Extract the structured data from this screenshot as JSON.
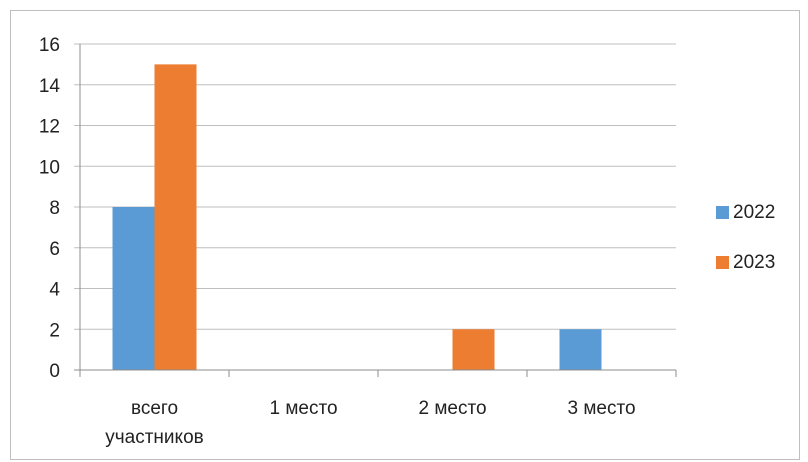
{
  "chart_data": {
    "type": "bar",
    "categories": [
      "всего участников",
      "1 место",
      "2 место",
      "3 место"
    ],
    "category_lines": [
      [
        "всего",
        "участников"
      ],
      [
        "1 место"
      ],
      [
        "2 место"
      ],
      [
        "3 место"
      ]
    ],
    "series": [
      {
        "name": "2022",
        "color": "#5B9BD5",
        "values": [
          8,
          0,
          0,
          2
        ]
      },
      {
        "name": "2023",
        "color": "#ED7D31",
        "values": [
          15,
          0,
          2,
          0
        ]
      }
    ],
    "ylim": [
      0,
      16
    ],
    "yticks": [
      "0",
      "2",
      "4",
      "6",
      "8",
      "10",
      "12",
      "14",
      "16"
    ],
    "grid": true,
    "legend_position": "right",
    "gridline_color": "#BFBFBF",
    "title": "",
    "xlabel": "",
    "ylabel": ""
  }
}
